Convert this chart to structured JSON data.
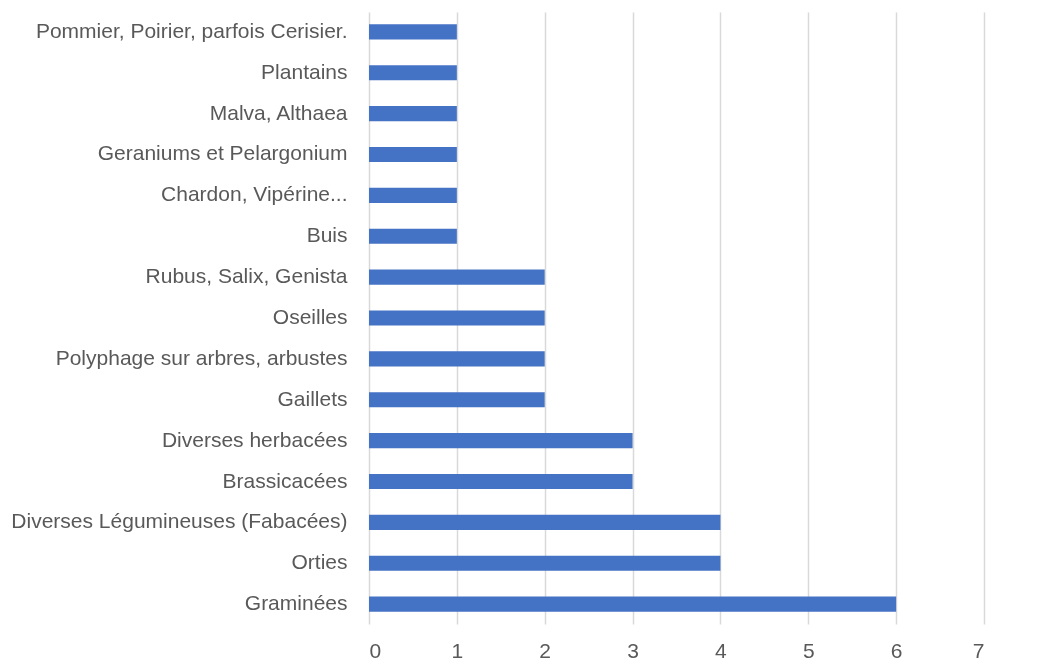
{
  "chart_data": {
    "type": "bar",
    "orientation": "horizontal",
    "categories": [
      "Pommier, Poirier, parfois Cerisier.",
      "Plantains",
      "Malva, Althaea",
      "Geraniums et Pelargonium",
      "Chardon, Vipérine...",
      "Buis",
      "Rubus, Salix, Genista",
      "Oseilles",
      "Polyphage sur arbres, arbustes",
      "Gaillets",
      "Diverses herbacées",
      "Brassicacées",
      "Diverses Légumineuses (Fabacées)",
      "Orties",
      "Graminées"
    ],
    "values": [
      1,
      1,
      1,
      1,
      1,
      1,
      2,
      2,
      2,
      2,
      3,
      3,
      4,
      4,
      6
    ],
    "color": "#4472c4",
    "xlim": [
      0,
      7
    ],
    "xticks": [
      0,
      1,
      2,
      3,
      4,
      5,
      6,
      7
    ],
    "grid": "x"
  }
}
